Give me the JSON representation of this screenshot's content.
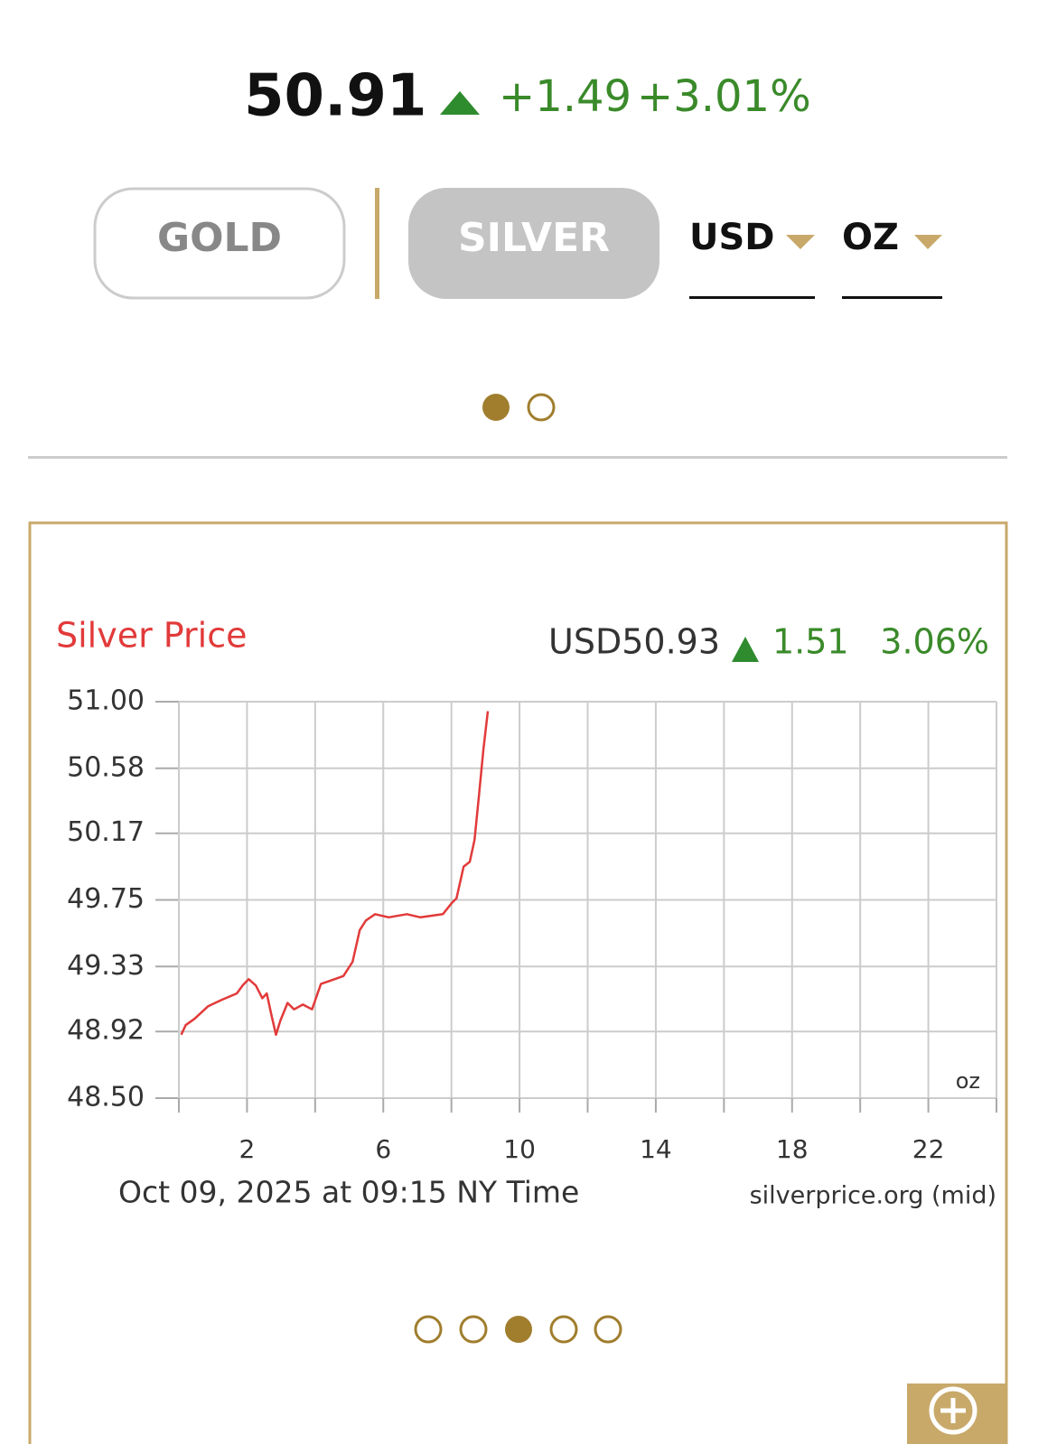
{
  "header": {
    "price": "50.91",
    "change": "+1.49",
    "change_percent": "+3.01%"
  },
  "tabs": [
    "GOLD",
    "SILVER"
  ],
  "selectors": [
    "USD",
    "OZ"
  ],
  "chart_data": {
    "type": "line",
    "title": "Silver Price",
    "price_label": "USD50.93",
    "change": "1.51",
    "change_percent": "3.06%",
    "unit_label": "oz",
    "footer": "Oct 09, 2025 at 09:15 NY Time",
    "source": "silverprice.org (mid)",
    "color": "#e23a3a",
    "grid": true,
    "xlim": [
      0,
      24
    ],
    "ylim": [
      48.5,
      51
    ],
    "xticks": [
      {
        "value": 0,
        "label": null
      },
      2,
      {
        "value": 4,
        "label": null
      },
      6,
      {
        "value": 8,
        "label": null
      },
      10,
      {
        "value": 12,
        "label": null
      },
      14,
      {
        "value": 16,
        "label": null
      },
      18,
      {
        "value": 20,
        "label": null
      },
      22,
      {
        "value": 24,
        "label": null
      }
    ],
    "yticks": [
      {
        "value": 48.5,
        "label": "48.50"
      },
      48.92,
      49.33,
      49.75,
      50.17,
      50.58,
      {
        "value": 51,
        "label": "51.00"
      }
    ],
    "x": [
      0.07,
      0.2,
      0.46,
      0.86,
      1.26,
      1.7,
      1.87,
      2.05,
      2.26,
      2.45,
      2.58,
      2.72,
      2.85,
      2.98,
      3.19,
      3.38,
      3.64,
      3.91,
      4.17,
      4.57,
      4.83,
      5.1,
      5.31,
      5.49,
      5.76,
      6.16,
      6.69,
      7.09,
      7.75,
      8.01,
      8.15,
      8.36,
      8.54,
      8.68,
      8.81,
      8.94,
      9.07
    ],
    "values": [
      48.9,
      48.96,
      49.0,
      49.08,
      49.12,
      49.16,
      49.21,
      49.25,
      49.21,
      49.13,
      49.16,
      49.02,
      48.9,
      48.99,
      49.1,
      49.06,
      49.09,
      49.06,
      49.22,
      49.25,
      49.27,
      49.36,
      49.56,
      49.62,
      49.66,
      49.64,
      49.66,
      49.64,
      49.66,
      49.73,
      49.76,
      49.96,
      49.99,
      50.13,
      50.41,
      50.7,
      50.94
    ]
  }
}
